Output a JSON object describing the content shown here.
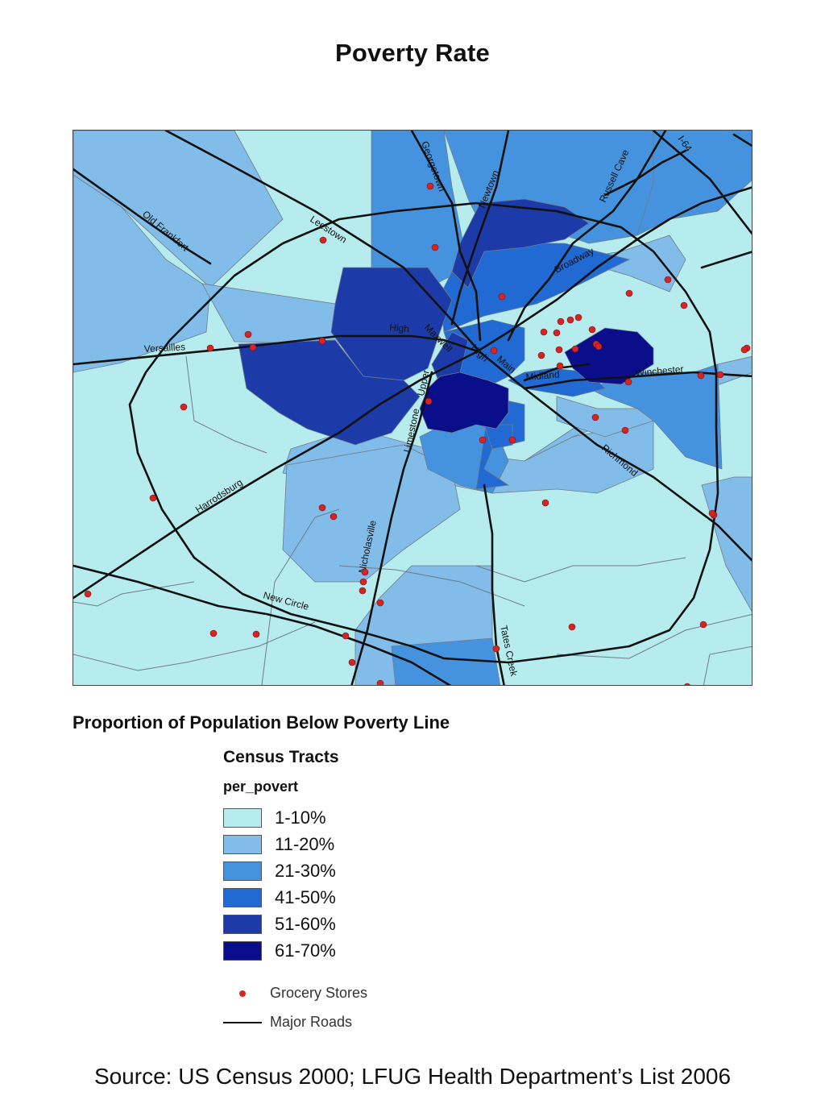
{
  "title": "Poverty Rate",
  "legend": {
    "heading": "Proportion of Population Below Poverty Line",
    "subtitle": "Census Tracts",
    "field": "per_povert",
    "classes": [
      {
        "label": "1-10%",
        "color": "#b7ecee"
      },
      {
        "label": "11-20%",
        "color": "#82bce8"
      },
      {
        "label": "21-30%",
        "color": "#4593de"
      },
      {
        "label": "41-50%",
        "color": "#2169d3"
      },
      {
        "label": "51-60%",
        "color": "#1c3aa8"
      },
      {
        "label": "61-70%",
        "color": "#0a0e8a"
      }
    ],
    "grocery_label": "Grocery Stores",
    "roads_label": "Major Roads",
    "grocery_color": "#d42424"
  },
  "roads": {
    "old_frankfort": "Old Frankfort",
    "leestown": "Leestown",
    "georgetown": "Georgetown",
    "newtown": "Newtown",
    "russell_cave": "Russell Cave",
    "i64": "I-64",
    "broadway": "Broadway",
    "versailles": "Versailles",
    "high_w": "High",
    "maxwell": "Maxwell",
    "high_e": "High",
    "main": "Main",
    "midland": "Midland",
    "winchester": "Winchester",
    "upper": "Upper",
    "limestone": "Limestone",
    "harrodsburg": "Harrodsburg",
    "nicholasville": "Nicholasville",
    "new_circle": "New Circle",
    "tates_creek": "Tates Creek",
    "richmond": "Richmond"
  },
  "source": "Source: US Census 2000; LFUG Health Department’s List 2006"
}
